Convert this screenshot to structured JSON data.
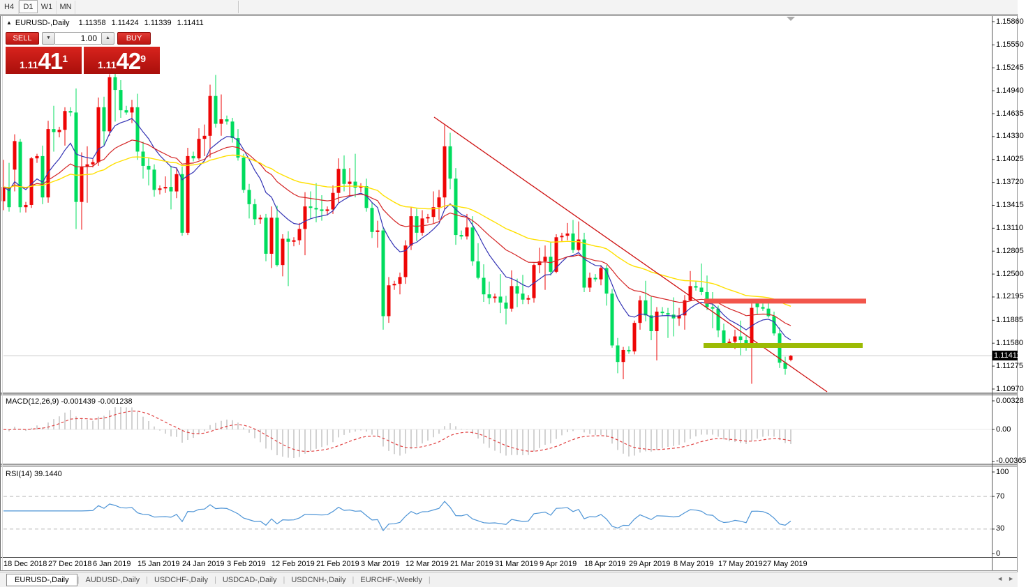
{
  "toolbar": {
    "timeframes": [
      "H4",
      "D1",
      "W1",
      "MN"
    ],
    "active": "D1"
  },
  "chart": {
    "symbol_line": {
      "symbol": "EURUSD-,Daily",
      "open": "1.11358",
      "high": "1.11424",
      "low": "1.11339",
      "close": "1.11411"
    },
    "trade_panel": {
      "sell_label": "SELL",
      "buy_label": "BUY",
      "volume": "1.00",
      "sell_price": {
        "prefix": "1.11",
        "big": "41",
        "sup": "1"
      },
      "buy_price": {
        "prefix": "1.11",
        "big": "42",
        "sup": "9"
      }
    },
    "price_axis": {
      "ticks": [
        "1.15860",
        "1.15550",
        "1.15245",
        "1.14940",
        "1.14635",
        "1.14330",
        "1.14025",
        "1.13720",
        "1.13415",
        "1.13110",
        "1.12805",
        "1.12500",
        "1.12195",
        "1.11885",
        "1.11580",
        "1.11275",
        "1.10970"
      ],
      "current": "1.11411"
    },
    "time_axis": [
      "18 Dec 2018",
      "27 Dec 2018",
      "6 Jan 2019",
      "15 Jan 2019",
      "24 Jan 2019",
      "3 Feb 2019",
      "12 Feb 2019",
      "21 Feb 2019",
      "3 Mar 2019",
      "12 Mar 2019",
      "21 Mar 2019",
      "31 Mar 2019",
      "9 Apr 2019",
      "18 Apr 2019",
      "29 Apr 2019",
      "8 May 2019",
      "17 May 2019",
      "27 May 2019"
    ]
  },
  "macd_panel": {
    "title": "MACD(12,26,9)",
    "value_main": "-0.001439",
    "value_signal": "-0.001238",
    "axis": [
      "0.00328",
      "0.00",
      "-0.00365"
    ]
  },
  "rsi_panel": {
    "title": "RSI(14)",
    "value": "39.1440",
    "axis": [
      "100",
      "70",
      "30",
      "0"
    ],
    "levels": [
      70,
      30
    ]
  },
  "tabbar": {
    "tabs": [
      "EURUSD-,Daily",
      "AUDUSD-,Daily",
      "USDCHF-,Daily",
      "USDCAD-,Daily",
      "USDCNH-,Daily",
      "EURCHF-,Weekly"
    ],
    "active": 0,
    "scroll_left": "◄",
    "scroll_right": "►"
  },
  "colors": {
    "bull": "#EE0505",
    "bear": "#00DC5E",
    "ma_fast": "#3232B4",
    "ma_mid": "#D42424",
    "ma_slow": "#FFE000",
    "macd_hist": "#C6C6C6",
    "macd_signal": "#E04040",
    "rsi_line": "#4D94D6",
    "level_dash": "#BBBBBB",
    "trendline": "#CE1212",
    "resistance": "#F2564B",
    "support": "#9CBB04",
    "bid_line": "#C8C8C8",
    "shift_marker": "#ABABAB",
    "accent_red": "#C41A14"
  },
  "chart_data": {
    "type": "candlestick",
    "note": "OHLC bars, oldest first; up bars drawn red, down bars drawn green",
    "ylim": [
      1.1097,
      1.1586
    ],
    "overlays": [
      {
        "name": "ema-fast",
        "period": 10
      },
      {
        "name": "ema-mid",
        "period": 25
      },
      {
        "name": "ema-slow",
        "period": 50
      }
    ],
    "macd_params": [
      12,
      26,
      9
    ],
    "rsi_period": 14,
    "objects": {
      "trendline": {
        "x1": 622,
        "y1": 168,
        "x2": 1185,
        "y2": 562
      },
      "resistance": {
        "price": 1.1214,
        "x1": 1009,
        "x2": 1241
      },
      "support": {
        "price": 1.1155,
        "x1": 1008,
        "x2": 1236
      }
    },
    "bars": [
      [
        1.1347,
        1.1402,
        1.1335,
        1.1366
      ],
      [
        1.1366,
        1.1398,
        1.1333,
        1.1339
      ],
      [
        1.1389,
        1.1436,
        1.136,
        1.1427
      ],
      [
        1.1426,
        1.143,
        1.1332,
        1.1339
      ],
      [
        1.1339,
        1.1346,
        1.1332,
        1.1342
      ],
      [
        1.1342,
        1.1406,
        1.1338,
        1.1404
      ],
      [
        1.1404,
        1.141,
        1.1398,
        1.1407
      ],
      [
        1.1407,
        1.1421,
        1.1343,
        1.1352
      ],
      [
        1.1352,
        1.1454,
        1.1345,
        1.1443
      ],
      [
        1.1443,
        1.1474,
        1.1413,
        1.1439
      ],
      [
        1.1439,
        1.1446,
        1.1432,
        1.1442
      ],
      [
        1.1442,
        1.1472,
        1.1421,
        1.1467
      ],
      [
        1.1467,
        1.1472,
        1.146,
        1.1465
      ],
      [
        1.1465,
        1.1497,
        1.131,
        1.1346
      ],
      [
        1.1346,
        1.1412,
        1.1309,
        1.1393
      ],
      [
        1.1393,
        1.142,
        1.1345,
        1.1396
      ],
      [
        1.1396,
        1.1403,
        1.1392,
        1.1399
      ],
      [
        1.1399,
        1.1485,
        1.1394,
        1.1472
      ],
      [
        1.1472,
        1.1486,
        1.1421,
        1.144
      ],
      [
        1.144,
        1.1516,
        1.1434,
        1.1512
      ],
      [
        1.1512,
        1.152,
        1.1453,
        1.1495
      ],
      [
        1.1495,
        1.1508,
        1.1458,
        1.1468
      ],
      [
        1.1468,
        1.1474,
        1.1462,
        1.1465
      ],
      [
        1.1465,
        1.1482,
        1.1451,
        1.1472
      ],
      [
        1.1472,
        1.149,
        1.1402,
        1.1413
      ],
      [
        1.1413,
        1.1426,
        1.1377,
        1.1394
      ],
      [
        1.1394,
        1.1404,
        1.1368,
        1.1389
      ],
      [
        1.1389,
        1.1396,
        1.1353,
        1.1362
      ],
      [
        1.1362,
        1.1368,
        1.1356,
        1.1364
      ],
      [
        1.1364,
        1.138,
        1.1358,
        1.1366
      ],
      [
        1.1366,
        1.1394,
        1.1336,
        1.136
      ],
      [
        1.136,
        1.1392,
        1.1351,
        1.1383
      ],
      [
        1.1383,
        1.1393,
        1.1301,
        1.1305
      ],
      [
        1.1305,
        1.1418,
        1.1302,
        1.1407
      ],
      [
        1.1407,
        1.1413,
        1.14,
        1.1404
      ],
      [
        1.1404,
        1.1444,
        1.1402,
        1.143
      ],
      [
        1.143,
        1.1449,
        1.1407,
        1.1434
      ],
      [
        1.1434,
        1.1502,
        1.1405,
        1.1487
      ],
      [
        1.1487,
        1.1515,
        1.1445,
        1.145
      ],
      [
        1.145,
        1.1489,
        1.1434,
        1.1456
      ],
      [
        1.1456,
        1.1461,
        1.1449,
        1.1453
      ],
      [
        1.1453,
        1.1458,
        1.1425,
        1.1431
      ],
      [
        1.1431,
        1.1443,
        1.1401,
        1.1405
      ],
      [
        1.1405,
        1.141,
        1.1358,
        1.1362
      ],
      [
        1.1362,
        1.137,
        1.1324,
        1.1343
      ],
      [
        1.1343,
        1.135,
        1.1315,
        1.1323
      ],
      [
        1.1323,
        1.1329,
        1.1317,
        1.1325
      ],
      [
        1.1325,
        1.133,
        1.1267,
        1.1277
      ],
      [
        1.1277,
        1.134,
        1.1258,
        1.1325
      ],
      [
        1.1325,
        1.1341,
        1.126,
        1.1262
      ],
      [
        1.1262,
        1.1303,
        1.1247,
        1.1297
      ],
      [
        1.1297,
        1.1307,
        1.1234,
        1.1293
      ],
      [
        1.1293,
        1.1299,
        1.1287,
        1.1295
      ],
      [
        1.1295,
        1.1318,
        1.1289,
        1.131
      ],
      [
        1.131,
        1.1359,
        1.1275,
        1.134
      ],
      [
        1.134,
        1.136,
        1.1324,
        1.1338
      ],
      [
        1.1338,
        1.1371,
        1.1319,
        1.1336
      ],
      [
        1.1336,
        1.1355,
        1.1321,
        1.1334
      ],
      [
        1.1334,
        1.134,
        1.1328,
        1.1336
      ],
      [
        1.1336,
        1.1368,
        1.133,
        1.1358
      ],
      [
        1.1358,
        1.1404,
        1.1345,
        1.139
      ],
      [
        1.139,
        1.1408,
        1.136,
        1.137
      ],
      [
        1.137,
        1.1391,
        1.1355,
        1.1373
      ],
      [
        1.1373,
        1.141,
        1.1352,
        1.1365
      ],
      [
        1.1365,
        1.1371,
        1.1359,
        1.1367
      ],
      [
        1.1367,
        1.1377,
        1.1333,
        1.1338
      ],
      [
        1.1338,
        1.1345,
        1.1298,
        1.1306
      ],
      [
        1.1306,
        1.1321,
        1.1285,
        1.1308
      ],
      [
        1.1308,
        1.1312,
        1.1176,
        1.1194
      ],
      [
        1.1194,
        1.1246,
        1.1185,
        1.1235
      ],
      [
        1.1235,
        1.1241,
        1.1229,
        1.1237
      ],
      [
        1.1237,
        1.1252,
        1.1223,
        1.1246
      ],
      [
        1.1246,
        1.1295,
        1.1237,
        1.1288
      ],
      [
        1.1288,
        1.1339,
        1.1282,
        1.1327
      ],
      [
        1.1327,
        1.1337,
        1.1294,
        1.1305
      ],
      [
        1.1305,
        1.1335,
        1.1301,
        1.1324
      ],
      [
        1.1324,
        1.133,
        1.1318,
        1.1326
      ],
      [
        1.1326,
        1.136,
        1.1318,
        1.1339
      ],
      [
        1.1339,
        1.1362,
        1.1322,
        1.1352
      ],
      [
        1.1352,
        1.1448,
        1.1336,
        1.142
      ],
      [
        1.142,
        1.1438,
        1.1363,
        1.1377
      ],
      [
        1.1377,
        1.1391,
        1.1289,
        1.1302
      ],
      [
        1.1302,
        1.1308,
        1.1296,
        1.13
      ],
      [
        1.13,
        1.133,
        1.1296,
        1.1312
      ],
      [
        1.1312,
        1.1327,
        1.1261,
        1.1267
      ],
      [
        1.1267,
        1.1291,
        1.1243,
        1.1245
      ],
      [
        1.1245,
        1.1263,
        1.1213,
        1.1223
      ],
      [
        1.1223,
        1.124,
        1.121,
        1.1218
      ],
      [
        1.1218,
        1.1224,
        1.1212,
        1.122
      ],
      [
        1.122,
        1.125,
        1.1198,
        1.1212
      ],
      [
        1.1212,
        1.1221,
        1.1183,
        1.1204
      ],
      [
        1.1204,
        1.1255,
        1.12,
        1.1234
      ],
      [
        1.1234,
        1.1244,
        1.1206,
        1.1224
      ],
      [
        1.1224,
        1.1249,
        1.121,
        1.1216
      ],
      [
        1.1216,
        1.1222,
        1.121,
        1.1218
      ],
      [
        1.1218,
        1.1264,
        1.1212,
        1.1262
      ],
      [
        1.1262,
        1.1285,
        1.1251,
        1.1267
      ],
      [
        1.1267,
        1.1288,
        1.1229,
        1.1273
      ],
      [
        1.1273,
        1.1292,
        1.1248,
        1.1253
      ],
      [
        1.1253,
        1.1303,
        1.1251,
        1.1299
      ],
      [
        1.1299,
        1.1305,
        1.1293,
        1.1301
      ],
      [
        1.1301,
        1.1318,
        1.1295,
        1.1304
      ],
      [
        1.1304,
        1.1322,
        1.1278,
        1.1282
      ],
      [
        1.1282,
        1.132,
        1.128,
        1.1296
      ],
      [
        1.1296,
        1.1305,
        1.1226,
        1.1232
      ],
      [
        1.1232,
        1.1252,
        1.1226,
        1.1245
      ],
      [
        1.1245,
        1.125,
        1.124,
        1.1243
      ],
      [
        1.1243,
        1.1262,
        1.1235,
        1.1258
      ],
      [
        1.1258,
        1.1262,
        1.1208,
        1.1224
      ],
      [
        1.1224,
        1.123,
        1.1152,
        1.1155
      ],
      [
        1.1155,
        1.1165,
        1.1118,
        1.1133
      ],
      [
        1.1133,
        1.1153,
        1.111,
        1.1149
      ],
      [
        1.1149,
        1.1154,
        1.1144,
        1.1147
      ],
      [
        1.1147,
        1.1188,
        1.1143,
        1.1185
      ],
      [
        1.1185,
        1.1221,
        1.1176,
        1.1215
      ],
      [
        1.1215,
        1.1241,
        1.1187,
        1.1195
      ],
      [
        1.1195,
        1.122,
        1.1162,
        1.1174
      ],
      [
        1.1174,
        1.1206,
        1.1135,
        1.12
      ],
      [
        1.12,
        1.1206,
        1.1194,
        1.1198
      ],
      [
        1.1198,
        1.1205,
        1.1165,
        1.1196
      ],
      [
        1.1196,
        1.1219,
        1.1167,
        1.1191
      ],
      [
        1.1191,
        1.1205,
        1.1181,
        1.1195
      ],
      [
        1.1195,
        1.1222,
        1.1176,
        1.1215
      ],
      [
        1.1215,
        1.1254,
        1.1214,
        1.1234
      ],
      [
        1.1234,
        1.124,
        1.1228,
        1.1232
      ],
      [
        1.1232,
        1.1264,
        1.1222,
        1.1226
      ],
      [
        1.1226,
        1.1248,
        1.1202,
        1.1206
      ],
      [
        1.1206,
        1.1226,
        1.1178,
        1.1204
      ],
      [
        1.1204,
        1.1208,
        1.1166,
        1.1175
      ],
      [
        1.1175,
        1.1184,
        1.1155,
        1.1158
      ],
      [
        1.1158,
        1.1164,
        1.1152,
        1.116
      ],
      [
        1.116,
        1.1176,
        1.115,
        1.1167
      ],
      [
        1.1167,
        1.1188,
        1.1142,
        1.1162
      ],
      [
        1.1162,
        1.1168,
        1.1148,
        1.1153
      ],
      [
        1.1153,
        1.1211,
        1.1104,
        1.1205
      ],
      [
        1.1212,
        1.1216,
        1.1196,
        1.1206
      ],
      [
        1.1206,
        1.1211,
        1.1201,
        1.1204
      ],
      [
        1.1204,
        1.1215,
        1.1192,
        1.1194
      ],
      [
        1.1194,
        1.12,
        1.1168,
        1.1171
      ],
      [
        1.1171,
        1.1179,
        1.1125,
        1.1132
      ],
      [
        1.1132,
        1.114,
        1.1116,
        1.1124
      ],
      [
        1.11358,
        1.11424,
        1.11339,
        1.11411
      ]
    ]
  }
}
